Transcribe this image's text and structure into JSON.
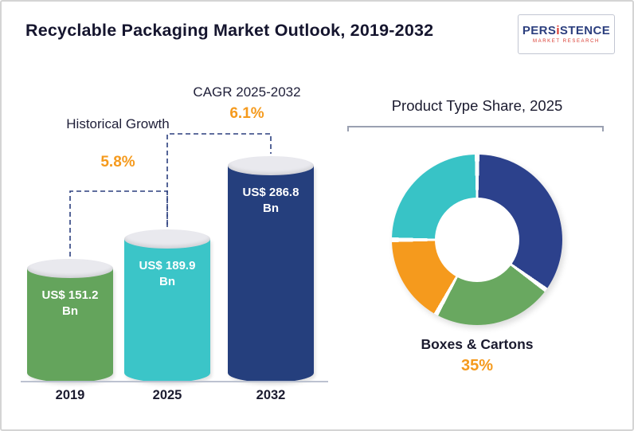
{
  "header": {
    "title": "Recyclable Packaging Market Outlook, 2019-2032"
  },
  "logo": {
    "name_pre": "PERS",
    "name_i": "i",
    "name_post": "STENCE",
    "tagline": "MARKET RESEARCH",
    "brand_navy": "#2C3F7E",
    "brand_red": "#D8382E"
  },
  "colors": {
    "accent_orange": "#F59A1D",
    "connector_navy": "#2B3F7E",
    "text_dark": "#1B1B2F"
  },
  "chart_data": [
    {
      "type": "bar",
      "subtype": "3d-cylinder",
      "title": "Recyclable Packaging Market Outlook, 2019-2032",
      "categories": [
        "2019",
        "2025",
        "2032"
      ],
      "values": [
        151.2,
        189.9,
        286.8
      ],
      "unit": "US$ Bn",
      "bar_labels": [
        "US$ 151.2 Bn",
        "US$ 189.9 Bn",
        "US$ 286.8 Bn"
      ],
      "colors": [
        "#64A45C",
        "#3BC5C8",
        "#253F7D"
      ],
      "ylim": [
        0,
        286.8
      ],
      "grid": false,
      "annotations": [
        {
          "label": "Historical Growth",
          "value": "5.8%",
          "span": "2019-2025"
        },
        {
          "label": "CAGR 2025-2032",
          "value": "6.1%",
          "span": "2025-2032"
        }
      ]
    },
    {
      "type": "pie",
      "subtype": "donut",
      "title": "Product Type Share, 2025",
      "start_angle_deg": 0,
      "segments": [
        {
          "name": "Boxes & Cartons",
          "value": 35,
          "color": "#2C418C"
        },
        {
          "name": "unlabeled-green",
          "value": 23,
          "color": "#69A860"
        },
        {
          "name": "unlabeled-orange",
          "value": 17,
          "color": "#F59A1D"
        },
        {
          "name": "unlabeled-teal",
          "value": 25,
          "color": "#38C3C6"
        }
      ],
      "callout": {
        "label": "Boxes & Cartons",
        "value": "35%"
      }
    }
  ]
}
